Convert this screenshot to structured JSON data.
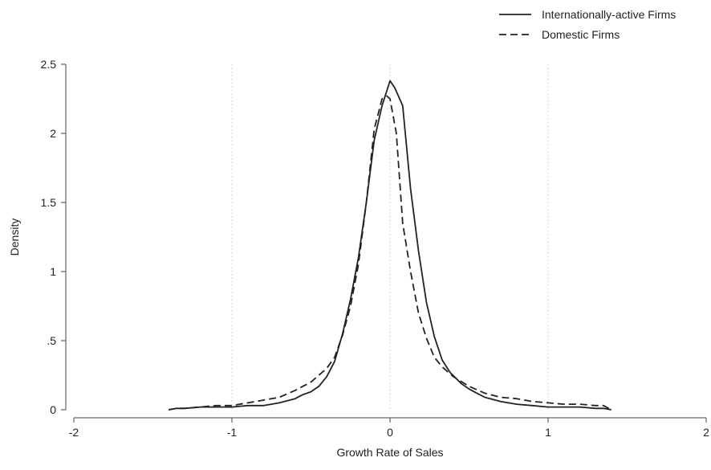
{
  "chart_data": {
    "type": "line",
    "title": "",
    "xlabel": "Growth Rate of Sales",
    "ylabel": "Density",
    "xlim": [
      -2,
      2
    ],
    "ylim": [
      0,
      2.5
    ],
    "x_ticks": [
      -2,
      -1,
      0,
      1,
      2
    ],
    "x_tick_labels": [
      "-2",
      "-1",
      "0",
      "1",
      "2"
    ],
    "y_ticks": [
      0,
      0.5,
      1,
      1.5,
      2,
      2.5
    ],
    "y_tick_labels": [
      "0",
      ".5",
      "1",
      "1.5",
      "2",
      "2.5"
    ],
    "grid": "vertical dotted lines at x = -1, 0, 1",
    "legend_position": "top-right",
    "series": [
      {
        "name": "Internationally-active Firms",
        "style": "solid",
        "color": "#222222",
        "x": [
          -1.4,
          -1.35,
          -1.3,
          -1.2,
          -1.1,
          -1.0,
          -0.9,
          -0.8,
          -0.75,
          -0.7,
          -0.6,
          -0.55,
          -0.5,
          -0.45,
          -0.4,
          -0.35,
          -0.3,
          -0.25,
          -0.2,
          -0.15,
          -0.1,
          -0.05,
          0.0,
          0.03,
          0.08,
          0.13,
          0.18,
          0.23,
          0.28,
          0.33,
          0.38,
          0.45,
          0.5,
          0.55,
          0.6,
          0.7,
          0.8,
          0.9,
          1.0,
          1.1,
          1.2,
          1.3,
          1.35,
          1.4
        ],
        "y": [
          0.0,
          0.01,
          0.01,
          0.02,
          0.02,
          0.02,
          0.03,
          0.03,
          0.04,
          0.05,
          0.08,
          0.11,
          0.13,
          0.17,
          0.24,
          0.35,
          0.55,
          0.8,
          1.1,
          1.5,
          1.95,
          2.2,
          2.38,
          2.33,
          2.2,
          1.6,
          1.15,
          0.78,
          0.53,
          0.36,
          0.27,
          0.19,
          0.15,
          0.12,
          0.09,
          0.06,
          0.04,
          0.03,
          0.02,
          0.02,
          0.02,
          0.01,
          0.01,
          0.0
        ]
      },
      {
        "name": "Domestic Firms",
        "style": "dashed",
        "color": "#222222",
        "x": [
          -1.4,
          -1.35,
          -1.3,
          -1.2,
          -1.1,
          -1.0,
          -0.9,
          -0.8,
          -0.7,
          -0.6,
          -0.5,
          -0.4,
          -0.35,
          -0.3,
          -0.25,
          -0.2,
          -0.15,
          -0.1,
          -0.05,
          -0.02,
          0.0,
          0.04,
          0.08,
          0.13,
          0.18,
          0.23,
          0.28,
          0.33,
          0.4,
          0.5,
          0.6,
          0.7,
          0.8,
          0.9,
          1.0,
          1.1,
          1.2,
          1.3,
          1.35,
          1.4
        ],
        "y": [
          0.0,
          0.01,
          0.01,
          0.02,
          0.03,
          0.03,
          0.05,
          0.07,
          0.09,
          0.14,
          0.2,
          0.3,
          0.38,
          0.54,
          0.75,
          1.05,
          1.5,
          2.03,
          2.25,
          2.27,
          2.25,
          2.0,
          1.35,
          1.0,
          0.7,
          0.52,
          0.38,
          0.31,
          0.24,
          0.17,
          0.12,
          0.09,
          0.08,
          0.06,
          0.05,
          0.04,
          0.04,
          0.03,
          0.03,
          0.0
        ]
      }
    ]
  }
}
